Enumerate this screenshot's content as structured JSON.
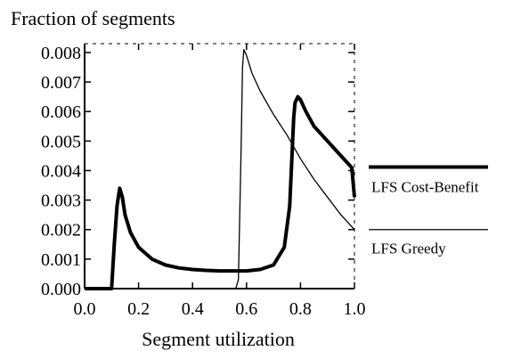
{
  "chart_data": {
    "type": "line",
    "title": "Fraction of segments",
    "xlabel": "Segment utilization",
    "ylabel": "",
    "xlim": [
      0.0,
      1.0
    ],
    "ylim": [
      0.0,
      0.0083
    ],
    "x_ticks": [
      0.0,
      0.2,
      0.4,
      0.6,
      0.8,
      1.0
    ],
    "x_tick_labels": [
      "0.0",
      "0.2",
      "0.4",
      "0.6",
      "0.8",
      "1.0"
    ],
    "y_ticks": [
      0.0,
      0.001,
      0.002,
      0.003,
      0.004,
      0.005,
      0.006,
      0.007,
      0.008
    ],
    "y_tick_labels": [
      "0.000",
      "0.001",
      "0.002",
      "0.003",
      "0.004",
      "0.005",
      "0.006",
      "0.007",
      "0.008"
    ],
    "grid": false,
    "legend_placement": "right",
    "series": [
      {
        "name": "LFS Cost-Benefit",
        "color": "#000000",
        "style": "thick",
        "x": [
          0.0,
          0.08,
          0.1,
          0.11,
          0.12,
          0.13,
          0.14,
          0.15,
          0.17,
          0.2,
          0.25,
          0.3,
          0.35,
          0.4,
          0.45,
          0.5,
          0.55,
          0.6,
          0.65,
          0.7,
          0.74,
          0.76,
          0.77,
          0.775,
          0.78,
          0.79,
          0.8,
          0.82,
          0.85,
          0.9,
          0.95,
          0.99,
          1.0
        ],
        "y": [
          0.0,
          0.0,
          0.0,
          0.0015,
          0.0028,
          0.0034,
          0.0031,
          0.0025,
          0.0019,
          0.0014,
          0.001,
          0.0008,
          0.0007,
          0.00065,
          0.00062,
          0.0006,
          0.0006,
          0.0006,
          0.00065,
          0.0008,
          0.0014,
          0.0028,
          0.0048,
          0.0058,
          0.0063,
          0.0065,
          0.0064,
          0.006,
          0.0055,
          0.005,
          0.0045,
          0.0041,
          0.0031
        ]
      },
      {
        "name": "LFS Greedy",
        "color": "#000000",
        "style": "thin",
        "x": [
          0.0,
          0.56,
          0.57,
          0.58,
          0.585,
          0.59,
          0.6,
          0.62,
          0.65,
          0.7,
          0.75,
          0.8,
          0.85,
          0.9,
          0.95,
          1.0
        ],
        "y": [
          0.0,
          0.0,
          0.0003,
          0.0047,
          0.0075,
          0.0081,
          0.0079,
          0.0073,
          0.0067,
          0.0059,
          0.0052,
          0.0044,
          0.0037,
          0.0031,
          0.0025,
          0.002
        ]
      }
    ]
  }
}
